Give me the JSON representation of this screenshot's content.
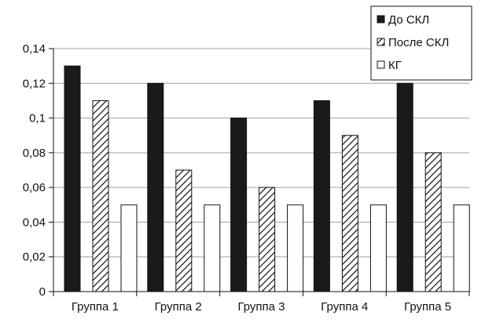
{
  "chart_data": {
    "type": "bar",
    "categories": [
      "Группа 1",
      "Группа 2",
      "Группа 3",
      "Группа 4",
      "Группа 5"
    ],
    "series": [
      {
        "name": "До СКЛ",
        "values": [
          0.13,
          0.12,
          0.1,
          0.11,
          0.12
        ],
        "style": "solid-black"
      },
      {
        "name": "После СКЛ",
        "values": [
          0.11,
          0.07,
          0.06,
          0.09,
          0.08
        ],
        "style": "diagonal-hatch"
      },
      {
        "name": "КГ",
        "values": [
          0.05,
          0.05,
          0.05,
          0.05,
          0.05
        ],
        "style": "white"
      }
    ],
    "yticks": [
      "0",
      "0,02",
      "0,04",
      "0,06",
      "0,08",
      "0,1",
      "0,12",
      "0,14"
    ],
    "ylim": [
      0,
      0.14
    ],
    "grid": true,
    "legend_position": "top-right",
    "title": "",
    "xlabel": "",
    "ylabel": ""
  },
  "colors": {
    "bar_solid": "#1a1a1a",
    "bar_outline": "#111111",
    "grid": "#a0a0a0",
    "axis": "#111111"
  }
}
